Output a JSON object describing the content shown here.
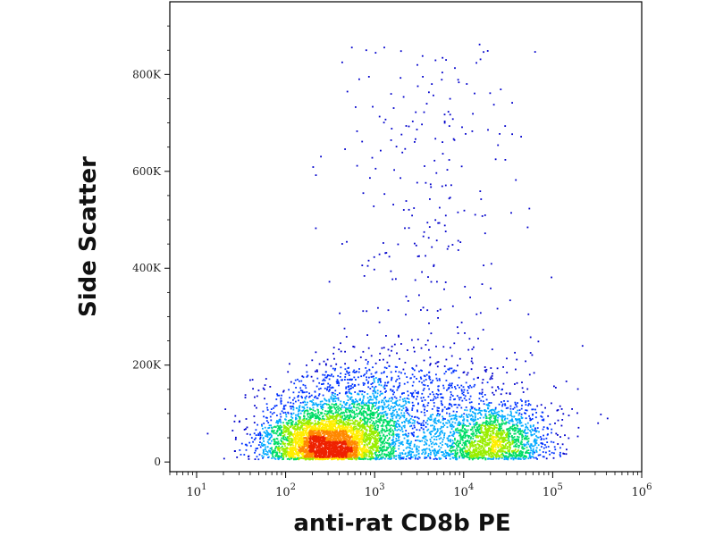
{
  "chart_data": {
    "type": "scatter",
    "subtype": "flow-cytometry density dot plot",
    "xlabel": "anti-rat CD8b PE",
    "ylabel": "Side Scatter",
    "x_scale": "log",
    "xlim": [
      5,
      1000000
    ],
    "ylim": [
      -20000,
      950000
    ],
    "x_ticks": [
      {
        "base": "10",
        "exp": "1",
        "value": 10
      },
      {
        "base": "10",
        "exp": "2",
        "value": 100
      },
      {
        "base": "10",
        "exp": "3",
        "value": 1000
      },
      {
        "base": "10",
        "exp": "4",
        "value": 10000
      },
      {
        "base": "10",
        "exp": "5",
        "value": 100000
      },
      {
        "base": "10",
        "exp": "6",
        "value": 1000000
      }
    ],
    "y_ticks": [
      {
        "label": "0",
        "value": 0
      },
      {
        "label": "200K",
        "value": 200000
      },
      {
        "label": "400K",
        "value": 400000
      },
      {
        "label": "600K",
        "value": 600000
      },
      {
        "label": "800K",
        "value": 800000
      }
    ],
    "populations": [
      {
        "name": "CD8b-negative cluster",
        "x_center": 270,
        "y_center": 40000,
        "count": 2600,
        "spread_log_x": 0.33,
        "spread_y": 30000
      },
      {
        "name": "CD8b-negative halo",
        "x_center": 400,
        "y_center": 75000,
        "count": 1600,
        "spread_log_x": 0.42,
        "spread_y": 55000
      },
      {
        "name": "CD8b-positive cluster",
        "x_center": 22000,
        "y_center": 45000,
        "count": 1400,
        "spread_log_x": 0.32,
        "spread_y": 35000
      },
      {
        "name": "intermediate spread",
        "x_center": 4000,
        "y_center": 90000,
        "count": 1200,
        "spread_log_x": 0.6,
        "spread_y": 70000
      },
      {
        "name": "high side scatter events",
        "x_center": 4000,
        "y_center": 450000,
        "count": 300,
        "spread_log_x": 0.55,
        "spread_y": 220000
      }
    ],
    "density_colors": [
      "#0000cc",
      "#0033ff",
      "#00aaff",
      "#00dd66",
      "#99ee00",
      "#ffee00",
      "#ff8800",
      "#ee2200"
    ],
    "grid": false,
    "legend": "none"
  }
}
